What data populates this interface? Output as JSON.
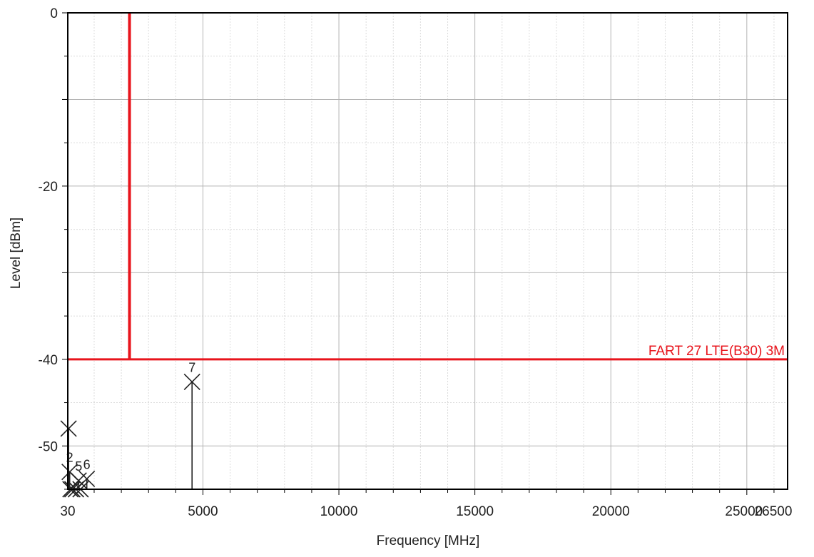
{
  "chart_data": {
    "type": "line",
    "xlabel": "Frequency [MHz]",
    "ylabel": "Level [dBm]",
    "xlim": [
      30,
      26500
    ],
    "ylim": [
      -55,
      0
    ],
    "x_ticks": [
      {
        "value": 30,
        "label": "30"
      },
      {
        "value": 5000,
        "label": "5000"
      },
      {
        "value": 10000,
        "label": "10000"
      },
      {
        "value": 15000,
        "label": "15000"
      },
      {
        "value": 20000,
        "label": "20000"
      },
      {
        "value": 25000,
        "label": "25000"
      },
      {
        "value": 26500,
        "label": "26500"
      }
    ],
    "y_ticks": [
      {
        "value": 0,
        "label": "0"
      },
      {
        "value": -20,
        "label": "-20"
      },
      {
        "value": -40,
        "label": "-40"
      },
      {
        "value": -50,
        "label": "-50"
      }
    ],
    "grid": true,
    "limit_line": {
      "label": "FART 27 LTE(B30) 3M",
      "level": -40,
      "x_start": 2300,
      "vertical_top": 0,
      "color": "#e8141c"
    },
    "markers": [
      {
        "label": "",
        "x": 60,
        "y": -48
      },
      {
        "label": "2",
        "x": 100,
        "y": -53
      },
      {
        "label": "",
        "x": 130,
        "y": -55
      },
      {
        "label": "",
        "x": 200,
        "y": -56
      },
      {
        "label": "5",
        "x": 430,
        "y": -54
      },
      {
        "label": "",
        "x": 330,
        "y": -57
      },
      {
        "label": "",
        "x": 500,
        "y": -57.5
      },
      {
        "label": "6",
        "x": 730,
        "y": -53.8
      },
      {
        "label": "7",
        "x": 4600,
        "y": -42.6
      }
    ],
    "colors": {
      "limit": "#e8141c",
      "marker": "#222222",
      "grid_major": "#b4b4b4",
      "grid_minor": "#dcdcdc",
      "axis": "#000000",
      "text": "#222222"
    }
  }
}
